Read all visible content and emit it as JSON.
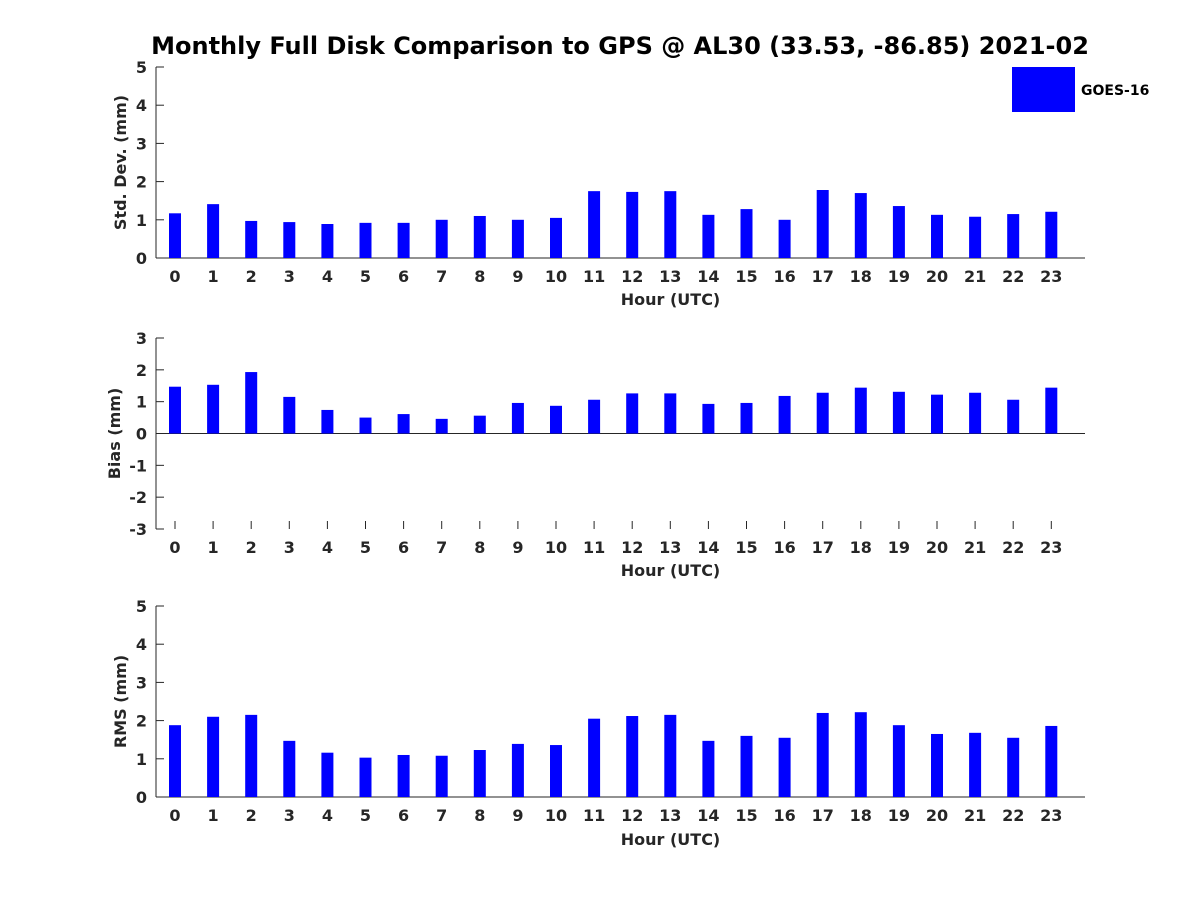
{
  "figure": {
    "title": "Monthly Full Disk Comparison to GPS @ AL30 (33.53, -86.85) 2021-02",
    "legend": {
      "label": "GOES-16",
      "color": "#0000ff",
      "placement": "top-right"
    }
  },
  "chart_data": [
    {
      "type": "bar",
      "categories": [
        "0",
        "1",
        "2",
        "3",
        "4",
        "5",
        "6",
        "7",
        "8",
        "9",
        "10",
        "11",
        "12",
        "13",
        "14",
        "15",
        "16",
        "17",
        "18",
        "19",
        "20",
        "21",
        "22",
        "23"
      ],
      "series": [
        {
          "name": "GOES-16",
          "color": "#0000ff",
          "values": [
            1.17,
            1.41,
            0.97,
            0.94,
            0.89,
            0.92,
            0.92,
            1.0,
            1.1,
            1.0,
            1.05,
            1.75,
            1.73,
            1.75,
            1.13,
            1.28,
            1.0,
            1.78,
            1.7,
            1.36,
            1.13,
            1.08,
            1.15,
            1.21
          ]
        }
      ],
      "xlabel": "Hour (UTC)",
      "ylabel": "Std. Dev. (mm)",
      "ylim": [
        0,
        5
      ],
      "yticks": [
        "0",
        "1",
        "2",
        "3",
        "4",
        "5"
      ],
      "grid": false
    },
    {
      "type": "bar",
      "categories": [
        "0",
        "1",
        "2",
        "3",
        "4",
        "5",
        "6",
        "7",
        "8",
        "9",
        "10",
        "11",
        "12",
        "13",
        "14",
        "15",
        "16",
        "17",
        "18",
        "19",
        "20",
        "21",
        "22",
        "23"
      ],
      "series": [
        {
          "name": "GOES-16",
          "color": "#0000ff",
          "values": [
            1.47,
            1.53,
            1.93,
            1.15,
            0.74,
            0.5,
            0.61,
            0.46,
            0.56,
            0.96,
            0.87,
            1.06,
            1.26,
            1.26,
            0.93,
            0.96,
            1.18,
            1.28,
            1.44,
            1.31,
            1.22,
            1.28,
            1.06,
            1.44
          ]
        }
      ],
      "xlabel": "Hour (UTC)",
      "ylabel": "Bias (mm)",
      "ylim": [
        -3,
        3
      ],
      "yticks": [
        "-3",
        "-2",
        "-1",
        "0",
        "1",
        "2",
        "3"
      ],
      "grid": false
    },
    {
      "type": "bar",
      "categories": [
        "0",
        "1",
        "2",
        "3",
        "4",
        "5",
        "6",
        "7",
        "8",
        "9",
        "10",
        "11",
        "12",
        "13",
        "14",
        "15",
        "16",
        "17",
        "18",
        "19",
        "20",
        "21",
        "22",
        "23"
      ],
      "series": [
        {
          "name": "GOES-16",
          "color": "#0000ff",
          "values": [
            1.88,
            2.1,
            2.15,
            1.47,
            1.16,
            1.03,
            1.1,
            1.08,
            1.23,
            1.39,
            1.36,
            2.05,
            2.12,
            2.15,
            1.47,
            1.6,
            1.55,
            2.2,
            2.22,
            1.88,
            1.65,
            1.68,
            1.55,
            1.86
          ]
        }
      ],
      "xlabel": "Hour (UTC)",
      "ylabel": "RMS (mm)",
      "ylim": [
        0,
        5
      ],
      "yticks": [
        "0",
        "1",
        "2",
        "3",
        "4",
        "5"
      ],
      "grid": false
    }
  ]
}
